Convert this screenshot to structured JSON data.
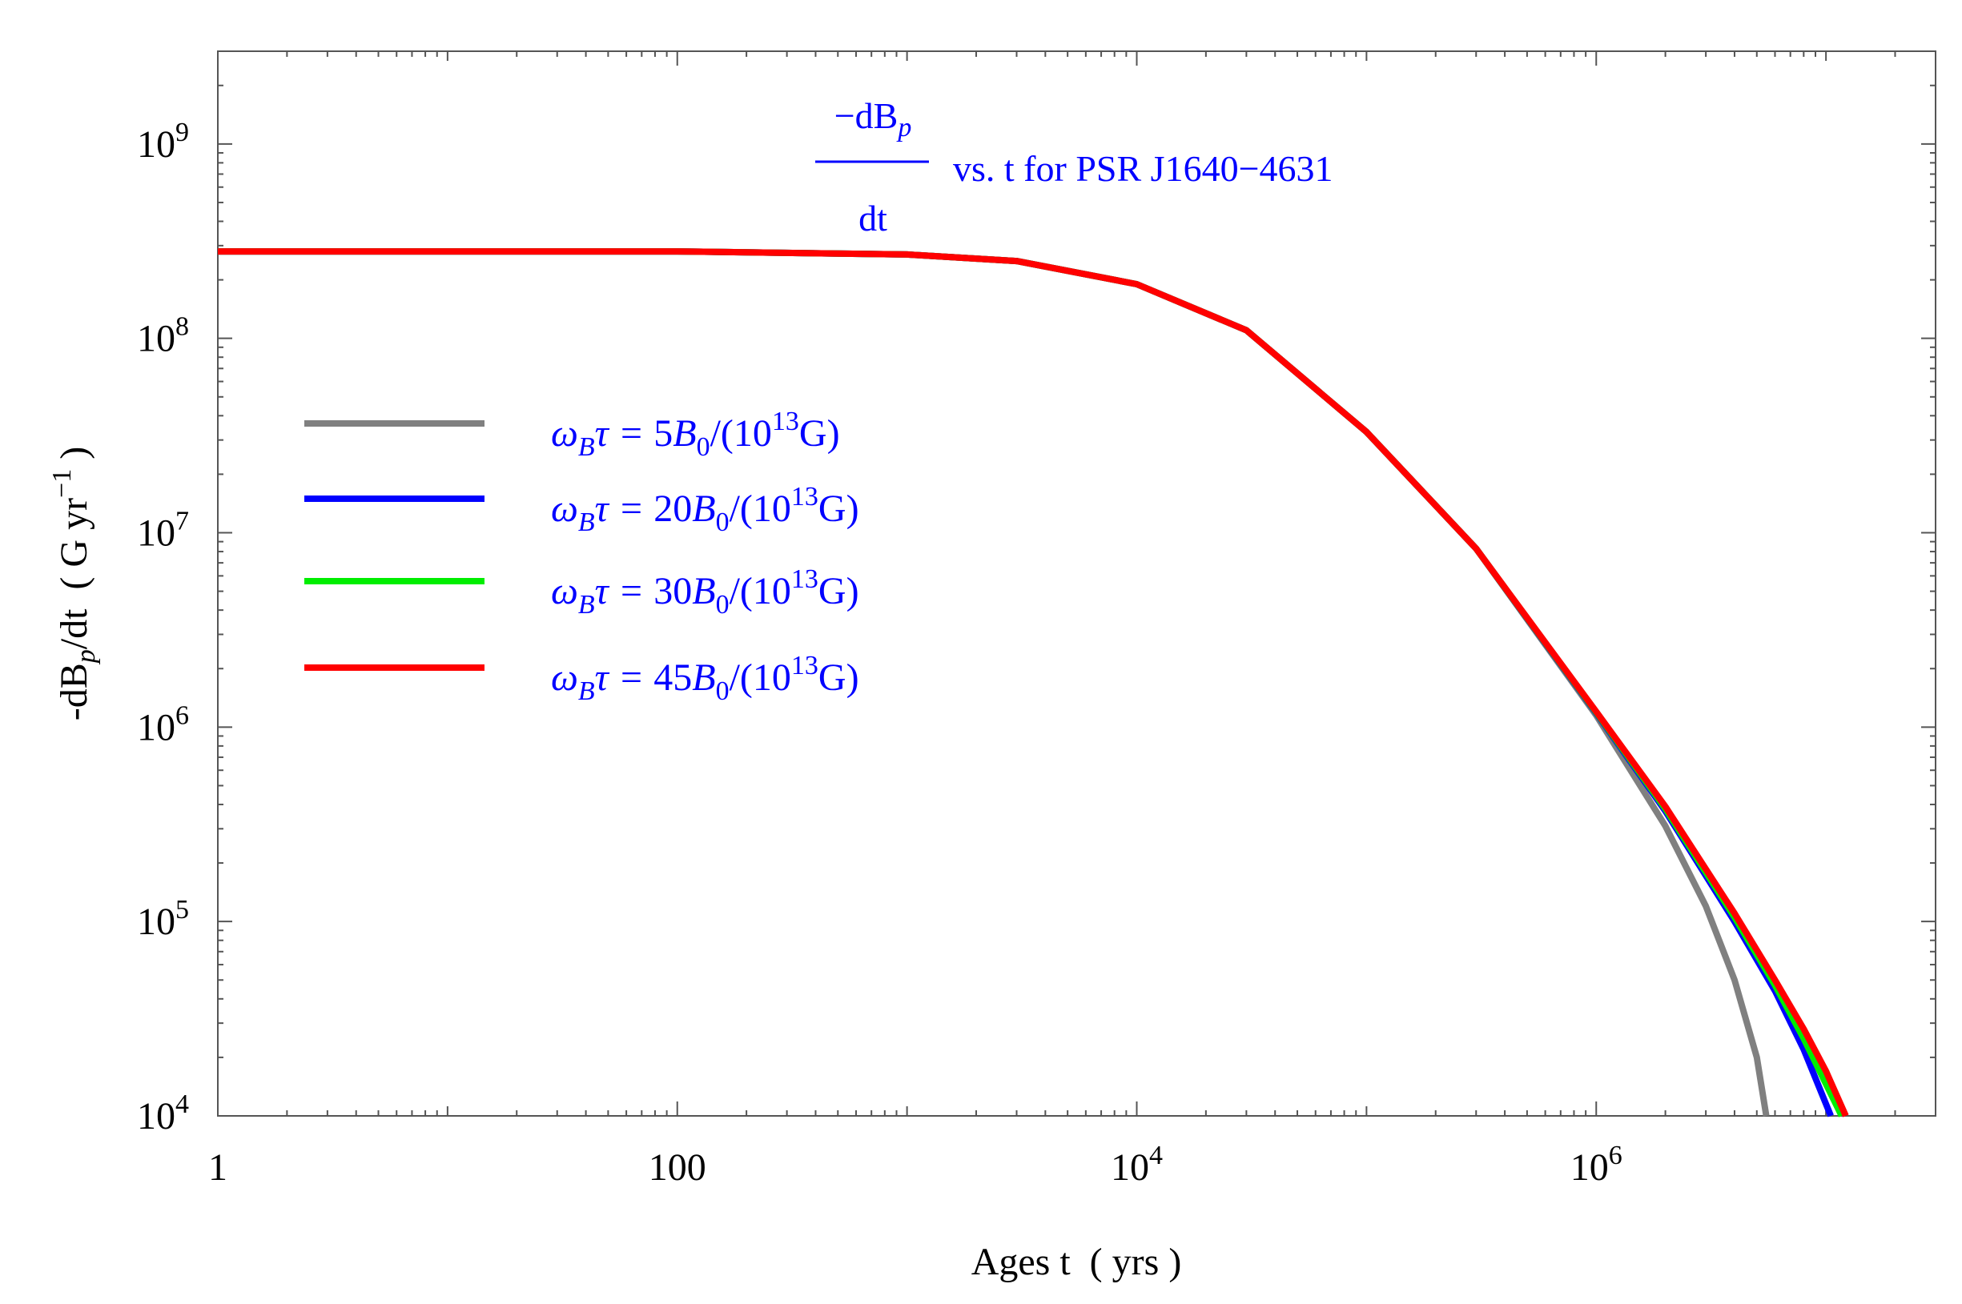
{
  "chart_data": {
    "type": "line",
    "scale": {
      "x": "log",
      "y": "log"
    },
    "title": {
      "numerator_prefix": "−dB",
      "numerator_sub": "p",
      "denominator": "dt",
      "suffix": "vs. t for PSR J1640−4631"
    },
    "xlabel": "Ages t  ( yrs )",
    "ylabel": {
      "prefix": "-dB",
      "sub": "p",
      "mid": "/dt  ( G yr",
      "sup": "−1",
      "suffix": " )"
    },
    "xlim": [
      1,
      30000000
    ],
    "ylim": [
      10000,
      3000000000
    ],
    "x_ticks": [
      {
        "value": 1,
        "base": "1",
        "exp": ""
      },
      {
        "value": 100,
        "base": "100",
        "exp": ""
      },
      {
        "value": 10000,
        "base": "10",
        "exp": "4"
      },
      {
        "value": 1000000,
        "base": "10",
        "exp": "6"
      }
    ],
    "y_ticks": [
      {
        "value": 10000,
        "base": "10",
        "exp": "4"
      },
      {
        "value": 100000,
        "base": "10",
        "exp": "5"
      },
      {
        "value": 1000000,
        "base": "10",
        "exp": "6"
      },
      {
        "value": 10000000,
        "base": "10",
        "exp": "7"
      },
      {
        "value": 100000000,
        "base": "10",
        "exp": "8"
      },
      {
        "value": 1000000000,
        "base": "10",
        "exp": "9"
      }
    ],
    "legend": {
      "placement": "upper-left"
    },
    "series": [
      {
        "name": "ωBτ = 5B0/(10^13G)",
        "label": {
          "coef": "5"
        },
        "color": "#808080",
        "x": [
          1,
          10,
          100,
          1000,
          3000,
          10000,
          30000,
          100000,
          300000,
          1000000,
          2000000,
          3000000,
          4000000,
          5000000,
          5500000
        ],
        "y": [
          280000000,
          280000000,
          280000000,
          270000000,
          250000000,
          190000000,
          110000000,
          33000000,
          8300000,
          1150000,
          310000,
          120000,
          50000,
          20000,
          10000
        ]
      },
      {
        "name": "ωBτ = 20B0/(10^13G)",
        "label": {
          "coef": "20"
        },
        "color": "#0000ff",
        "x": [
          1,
          10,
          100,
          1000,
          3000,
          10000,
          30000,
          100000,
          300000,
          1000000,
          2000000,
          4000000,
          6000000,
          8000000,
          10500000
        ],
        "y": [
          280000000,
          280000000,
          280000000,
          270000000,
          250000000,
          190000000,
          110000000,
          33000000,
          8300000,
          1180000,
          370000,
          100000,
          44000,
          22000,
          10000
        ]
      },
      {
        "name": "ωBτ = 30B0/(10^13G)",
        "label": {
          "coef": "30"
        },
        "color": "#00ee00",
        "x": [
          1,
          10,
          100,
          1000,
          3000,
          10000,
          30000,
          100000,
          300000,
          1000000,
          2000000,
          4000000,
          6000000,
          8000000,
          11700000
        ],
        "y": [
          280000000,
          280000000,
          280000000,
          270000000,
          250000000,
          190000000,
          110000000,
          33000000,
          8300000,
          1190000,
          380000,
          105000,
          47000,
          25000,
          10000
        ]
      },
      {
        "name": "ωBτ = 45B0/(10^13G)",
        "label": {
          "coef": "45"
        },
        "color": "#ff0000",
        "x": [
          1,
          10,
          100,
          1000,
          3000,
          10000,
          30000,
          100000,
          300000,
          1000000,
          2000000,
          4000000,
          6000000,
          8000000,
          10000000,
          12200000
        ],
        "y": [
          280000000,
          280000000,
          280000000,
          270000000,
          250000000,
          190000000,
          110000000,
          33000000,
          8300000,
          1200000,
          390000,
          110000,
          50000,
          28000,
          17000,
          10000
        ]
      }
    ]
  }
}
